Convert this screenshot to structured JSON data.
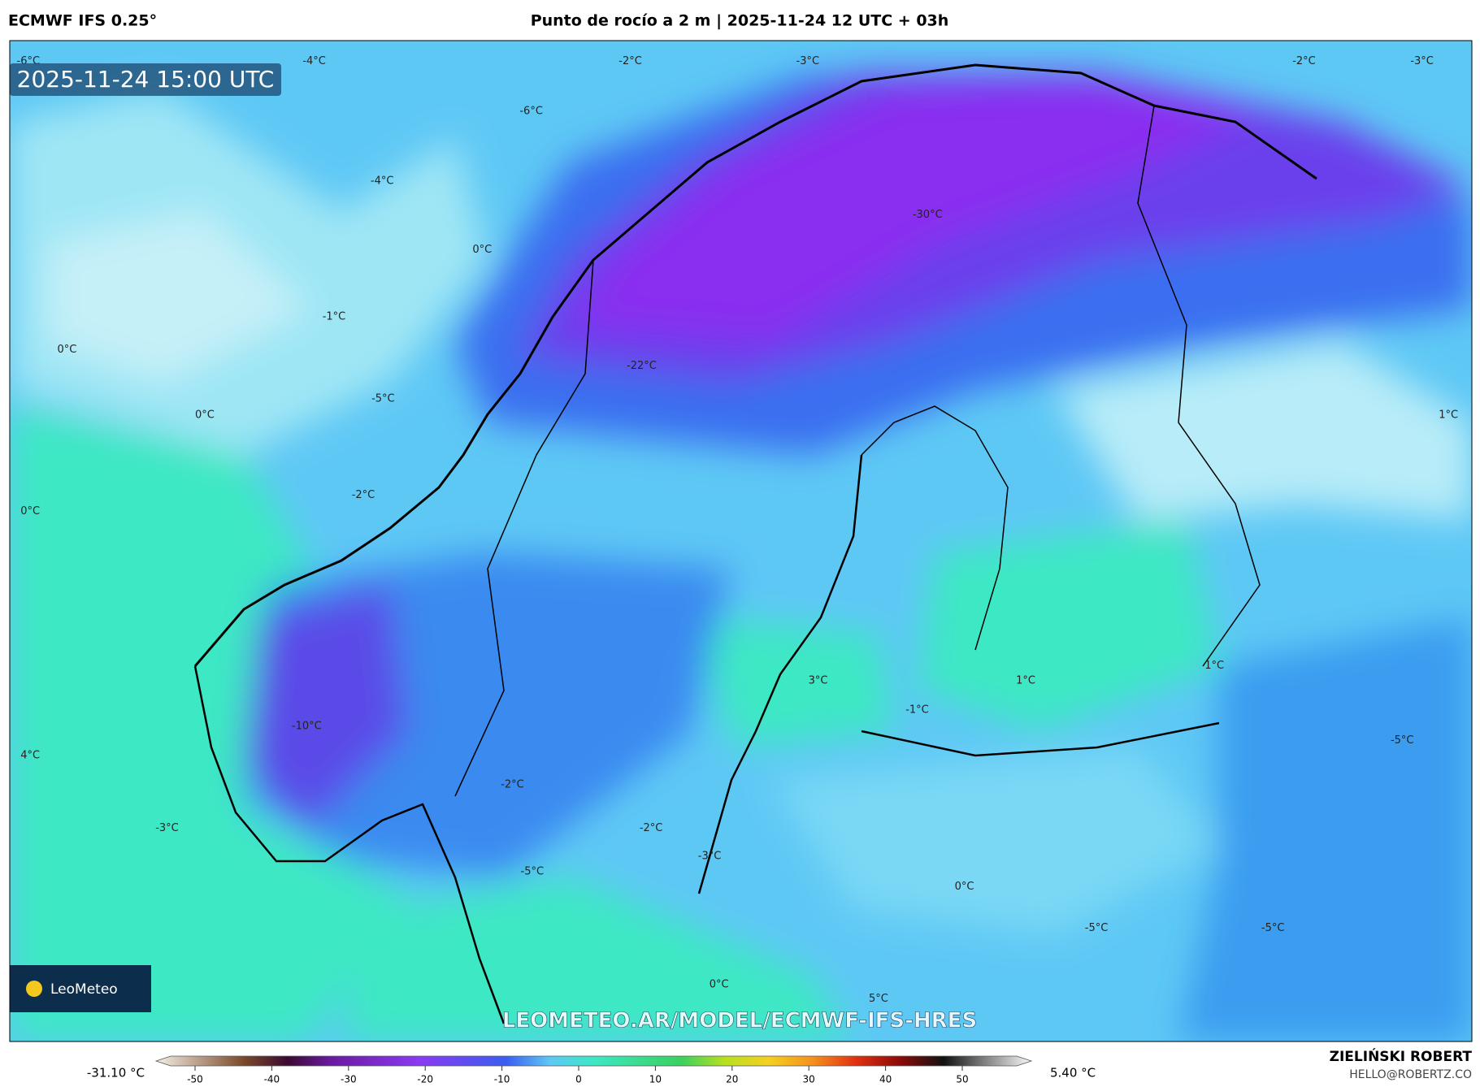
{
  "header": {
    "model": "ECMWF IFS 0.25°",
    "title": "Punto de rocío a 2 m | 2025-11-24 12 UTC + 03h"
  },
  "map": {
    "valid_time": "2025-11-24 15:00 UTC",
    "watermark": "LEOMETEO.AR/MODEL/ECMWF-IFS-HRES",
    "logo": "LeoMeteo",
    "labels": [
      "-6°C",
      "-4°C",
      "-2°C",
      "-3°C",
      "-2°C",
      "-3°C",
      "-6°C",
      "-4°C",
      "-30°C",
      "0°C",
      "-1°C",
      "0°C",
      "-22°C",
      "-5°C",
      "0°C",
      "1°C",
      "-2°C",
      "0°C",
      "3°C",
      "1°C",
      "-1°C",
      "1°C",
      "-10°C",
      "4°C",
      "-5°C",
      "-2°C",
      "-3°C",
      "-2°C",
      "-3°C",
      "-5°C",
      "0°C",
      "-5°C",
      "-5°C",
      "0°C",
      "5°C"
    ]
  },
  "colorbar": {
    "min_label": "-31.10 °C",
    "max_label": "5.40 °C",
    "ticks": [
      -50,
      -40,
      -30,
      -20,
      -10,
      0,
      10,
      20,
      30,
      40,
      50
    ]
  },
  "footer": {
    "author": "ZIELIŃSKI ROBERT",
    "email": "HELLO@ROBERTZ.CO"
  }
}
